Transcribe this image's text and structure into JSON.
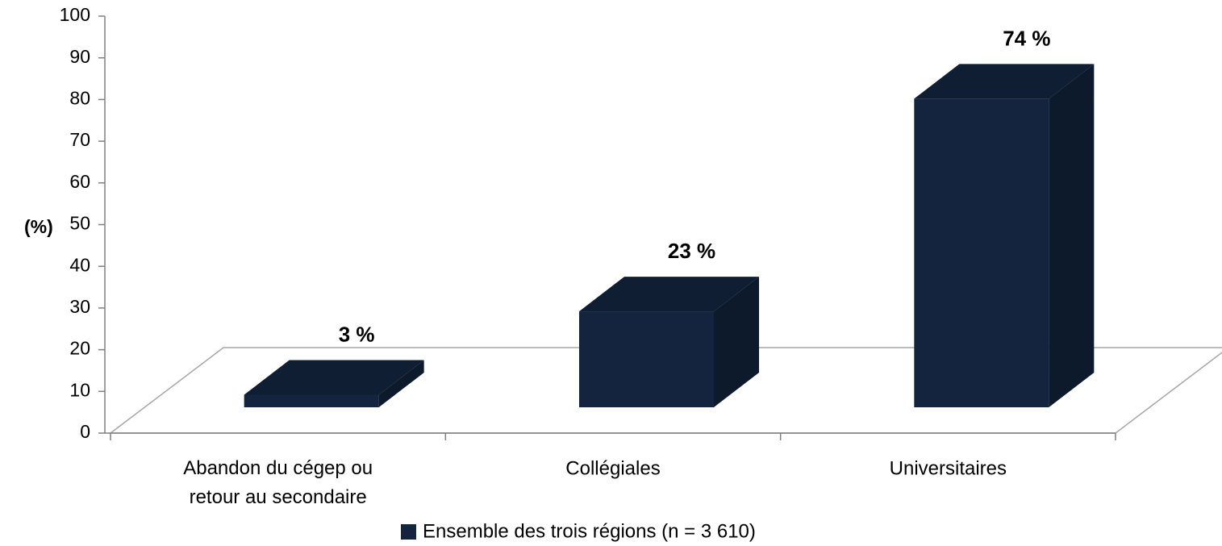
{
  "chart_data": {
    "type": "bar3d",
    "categories": [
      "Abandon du cégep ou retour au secondaire",
      "Collégiales",
      "Universitaires"
    ],
    "series": [
      {
        "name": "Ensemble des trois régions (n = 3 610)",
        "color": "#14243f",
        "values": [
          3,
          23,
          74
        ],
        "value_labels": [
          "3 %",
          "23 %",
          "74 %"
        ]
      }
    ],
    "ylabel": "(%)",
    "ylim": [
      0,
      100
    ],
    "yticks": [
      0,
      10,
      20,
      30,
      40,
      50,
      60,
      70,
      80,
      90,
      100
    ]
  }
}
